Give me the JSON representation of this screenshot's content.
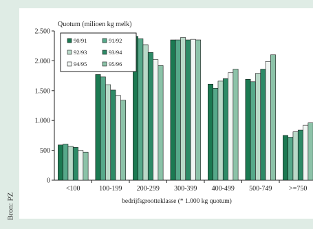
{
  "source_label": "Bron: PZ",
  "chart_data": {
    "type": "bar",
    "title": "Quotum (milioen kg melk)",
    "xlabel": "bedrijfsgrootteklasse (* 1.000 kg quotum)",
    "ylabel": "",
    "ylim": [
      0,
      2500
    ],
    "yticks": [
      0,
      500,
      1000,
      1500,
      2000,
      2500
    ],
    "ytick_labels": [
      "0",
      "500",
      "1.000",
      "1.500",
      "2.000",
      "2.500"
    ],
    "grid": false,
    "legend_position": "top-left",
    "categories": [
      "<100",
      "100-199",
      "200-299",
      "300-399",
      "400-499",
      "500-749",
      ">=750"
    ],
    "series": [
      {
        "name": "90/91",
        "color": "#1b7a52",
        "values": [
          590,
          1770,
          2410,
          2350,
          1610,
          1690,
          750
        ]
      },
      {
        "name": "91/92",
        "color": "#56a98a",
        "values": [
          605,
          1730,
          2370,
          2350,
          1540,
          1650,
          720
        ]
      },
      {
        "name": "92/93",
        "color": "#b9d9c8",
        "values": [
          570,
          1600,
          2270,
          2390,
          1660,
          1790,
          810
        ]
      },
      {
        "name": "93/94",
        "color": "#2d8a66",
        "values": [
          550,
          1510,
          2140,
          2350,
          1700,
          1860,
          840
        ]
      },
      {
        "name": "94/95",
        "color": "#f1f6f3",
        "values": [
          500,
          1420,
          2020,
          2360,
          1800,
          1990,
          920
        ]
      },
      {
        "name": "95/96",
        "color": "#8cc2a8",
        "values": [
          470,
          1340,
          1920,
          2350,
          1860,
          2100,
          960
        ]
      }
    ]
  }
}
